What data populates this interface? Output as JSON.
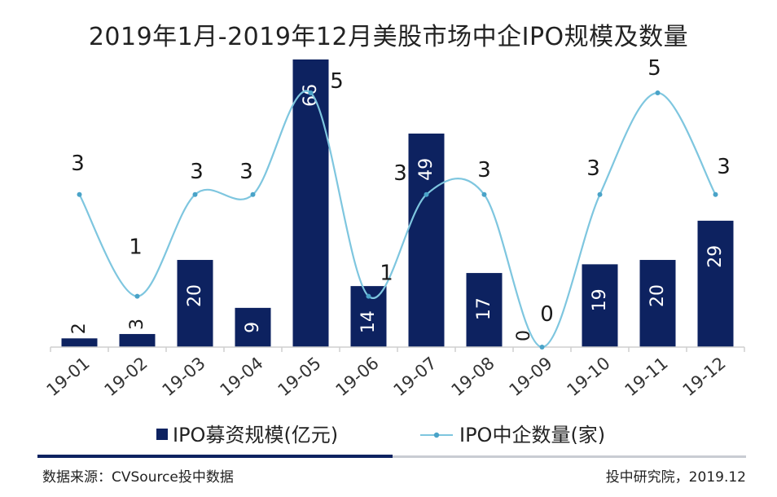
{
  "chart_data": {
    "type": "bar+line",
    "title": "2019年1月-2019年12月美股市场中企IPO规模及数量",
    "categories": [
      "19-01",
      "19-02",
      "19-03",
      "19-04",
      "19-05",
      "19-06",
      "19-07",
      "19-08",
      "19-09",
      "19-10",
      "19-11",
      "19-12"
    ],
    "series": [
      {
        "name": "IPO募资规模(亿元)",
        "type": "bar",
        "color": "#0d2260",
        "values": [
          2,
          3,
          20,
          9,
          66,
          14,
          49,
          17,
          0,
          19,
          20,
          29
        ],
        "labels": [
          "2",
          "3",
          "20",
          "9",
          "66",
          "14",
          "49",
          "17",
          "0",
          "19",
          "20",
          "29"
        ]
      },
      {
        "name": "IPO中企数量(家)",
        "type": "line",
        "color": "#7ec6df",
        "values": [
          3,
          1,
          3,
          3,
          5,
          1,
          3,
          3,
          0,
          3,
          5,
          3
        ],
        "labels": [
          "3",
          "1",
          "3",
          "3",
          "5",
          "1",
          "3",
          "3",
          "0",
          "3",
          "5",
          "3"
        ]
      }
    ],
    "ylim_bar": [
      0,
      66
    ],
    "ylim_line": [
      0,
      5
    ],
    "grid": false,
    "legend_position": "bottom"
  },
  "footer": {
    "source": "数据来源：CVSource投中数据",
    "credit": "投中研究院，2019.12"
  }
}
